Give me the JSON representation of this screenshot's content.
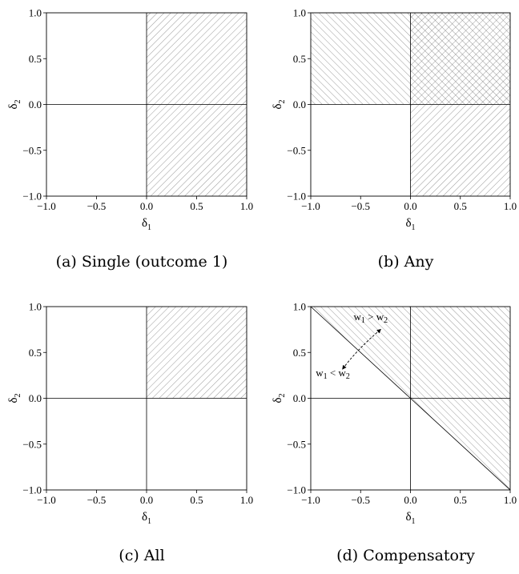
{
  "chart_data": [
    {
      "type": "region",
      "caption": "(a) Single (outcome 1)",
      "xlabel": "δ1",
      "ylabel": "δ2",
      "xlim": [
        -1,
        1
      ],
      "ylim": [
        -1,
        1
      ],
      "xticks": [
        "−1.0",
        "−0.5",
        "0.0",
        "0.5",
        "1.0"
      ],
      "yticks": [
        "−1.0",
        "−0.5",
        "0.0",
        "0.5",
        "1.0"
      ],
      "regions": [
        {
          "polygon": [
            [
              0,
              0
            ],
            [
              1,
              0
            ],
            [
              1,
              1
            ],
            [
              0,
              1
            ]
          ],
          "hatch": "forward"
        },
        {
          "polygon": [
            [
              0,
              -1
            ],
            [
              1,
              -1
            ],
            [
              1,
              0
            ],
            [
              0,
              0
            ]
          ],
          "hatch": "forward"
        }
      ],
      "lines": [
        [
          [
            0,
            -1
          ],
          [
            0,
            1
          ]
        ],
        [
          [
            -1,
            0
          ],
          [
            1,
            0
          ]
        ]
      ],
      "annotations": []
    },
    {
      "type": "region",
      "caption": "(b) Any",
      "xlabel": "δ1",
      "ylabel": "δ2",
      "xlim": [
        -1,
        1
      ],
      "ylim": [
        -1,
        1
      ],
      "xticks": [
        "−1.0",
        "−0.5",
        "0.0",
        "0.5",
        "1.0"
      ],
      "yticks": [
        "−1.0",
        "−0.5",
        "0.0",
        "0.5",
        "1.0"
      ],
      "regions": [
        {
          "polygon": [
            [
              -1,
              0
            ],
            [
              1,
              0
            ],
            [
              1,
              1
            ],
            [
              -1,
              1
            ]
          ],
          "hatch": "back"
        },
        {
          "polygon": [
            [
              0,
              -1
            ],
            [
              1,
              -1
            ],
            [
              1,
              1
            ],
            [
              0,
              1
            ]
          ],
          "hatch": "forward"
        }
      ],
      "lines": [
        [
          [
            0,
            -1
          ],
          [
            0,
            1
          ]
        ],
        [
          [
            -1,
            0
          ],
          [
            1,
            0
          ]
        ]
      ],
      "annotations": []
    },
    {
      "type": "region",
      "caption": "(c) All",
      "xlabel": "δ1",
      "ylabel": "δ2",
      "xlim": [
        -1,
        1
      ],
      "ylim": [
        -1,
        1
      ],
      "xticks": [
        "−1.0",
        "−0.5",
        "0.0",
        "0.5",
        "1.0"
      ],
      "yticks": [
        "−1.0",
        "−0.5",
        "0.0",
        "0.5",
        "1.0"
      ],
      "regions": [
        {
          "polygon": [
            [
              0,
              0
            ],
            [
              1,
              0
            ],
            [
              1,
              1
            ],
            [
              0,
              1
            ]
          ],
          "hatch": "forward"
        }
      ],
      "lines": [
        [
          [
            0,
            -1
          ],
          [
            0,
            1
          ]
        ],
        [
          [
            -1,
            0
          ],
          [
            1,
            0
          ]
        ]
      ],
      "annotations": []
    },
    {
      "type": "region",
      "caption": "(d) Compensatory",
      "xlabel": "δ1",
      "ylabel": "δ2",
      "xlim": [
        -1,
        1
      ],
      "ylim": [
        -1,
        1
      ],
      "xticks": [
        "−1.0",
        "−0.5",
        "0.0",
        "0.5",
        "1.0"
      ],
      "yticks": [
        "−1.0",
        "−0.5",
        "0.0",
        "0.5",
        "1.0"
      ],
      "regions": [
        {
          "polygon": [
            [
              -1,
              1
            ],
            [
              1,
              1
            ],
            [
              1,
              -1
            ]
          ],
          "hatch": "back"
        }
      ],
      "lines": [
        [
          [
            0,
            -1
          ],
          [
            0,
            1
          ]
        ],
        [
          [
            -1,
            0
          ],
          [
            1,
            0
          ]
        ],
        [
          [
            -1,
            1
          ],
          [
            1,
            -1
          ]
        ]
      ],
      "annotations": [
        {
          "text": "w1 > w2",
          "x": -0.57,
          "y": 0.85
        },
        {
          "text": "w1 < w2",
          "x": -0.95,
          "y": 0.24
        }
      ],
      "arrow": {
        "from": [
          -0.58,
          0.45
        ],
        "to": [
          -0.3,
          0.75
        ],
        "to2": [
          -0.68,
          0.32
        ],
        "curved": true,
        "dashed": true
      }
    }
  ]
}
